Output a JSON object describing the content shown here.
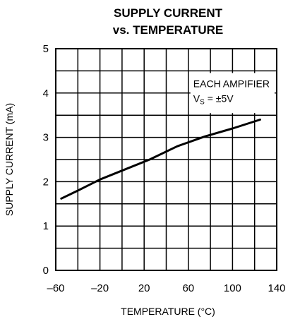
{
  "chart_data": {
    "type": "line",
    "title": [
      "SUPPLY CURRENT",
      "vs. TEMPERATURE"
    ],
    "xlabel": "TEMPERATURE (°C)",
    "ylabel": "SUPPLY CURRENT (mA)",
    "xlim": [
      -60,
      140
    ],
    "ylim": [
      0,
      5
    ],
    "x_ticks": [
      -60,
      -20,
      20,
      60,
      100,
      140
    ],
    "x_tick_labels": [
      "–60",
      "–20",
      "20",
      "60",
      "100",
      "140"
    ],
    "y_ticks": [
      0,
      1,
      2,
      3,
      4,
      5
    ],
    "y_tick_labels": [
      "0",
      "1",
      "2",
      "3",
      "4",
      "5"
    ],
    "grid": true,
    "annotation": {
      "line1": "EACH AMPIFIER",
      "line2_prefix": "V",
      "line2_subscript": "S",
      "line2_suffix": " = ±5V"
    },
    "series": [
      {
        "color": "#000000",
        "x": [
          -55,
          -40,
          -20,
          0,
          25,
          50,
          75,
          100,
          125
        ],
        "y": [
          1.62,
          1.8,
          2.05,
          2.25,
          2.5,
          2.8,
          3.02,
          3.2,
          3.4
        ]
      }
    ]
  }
}
